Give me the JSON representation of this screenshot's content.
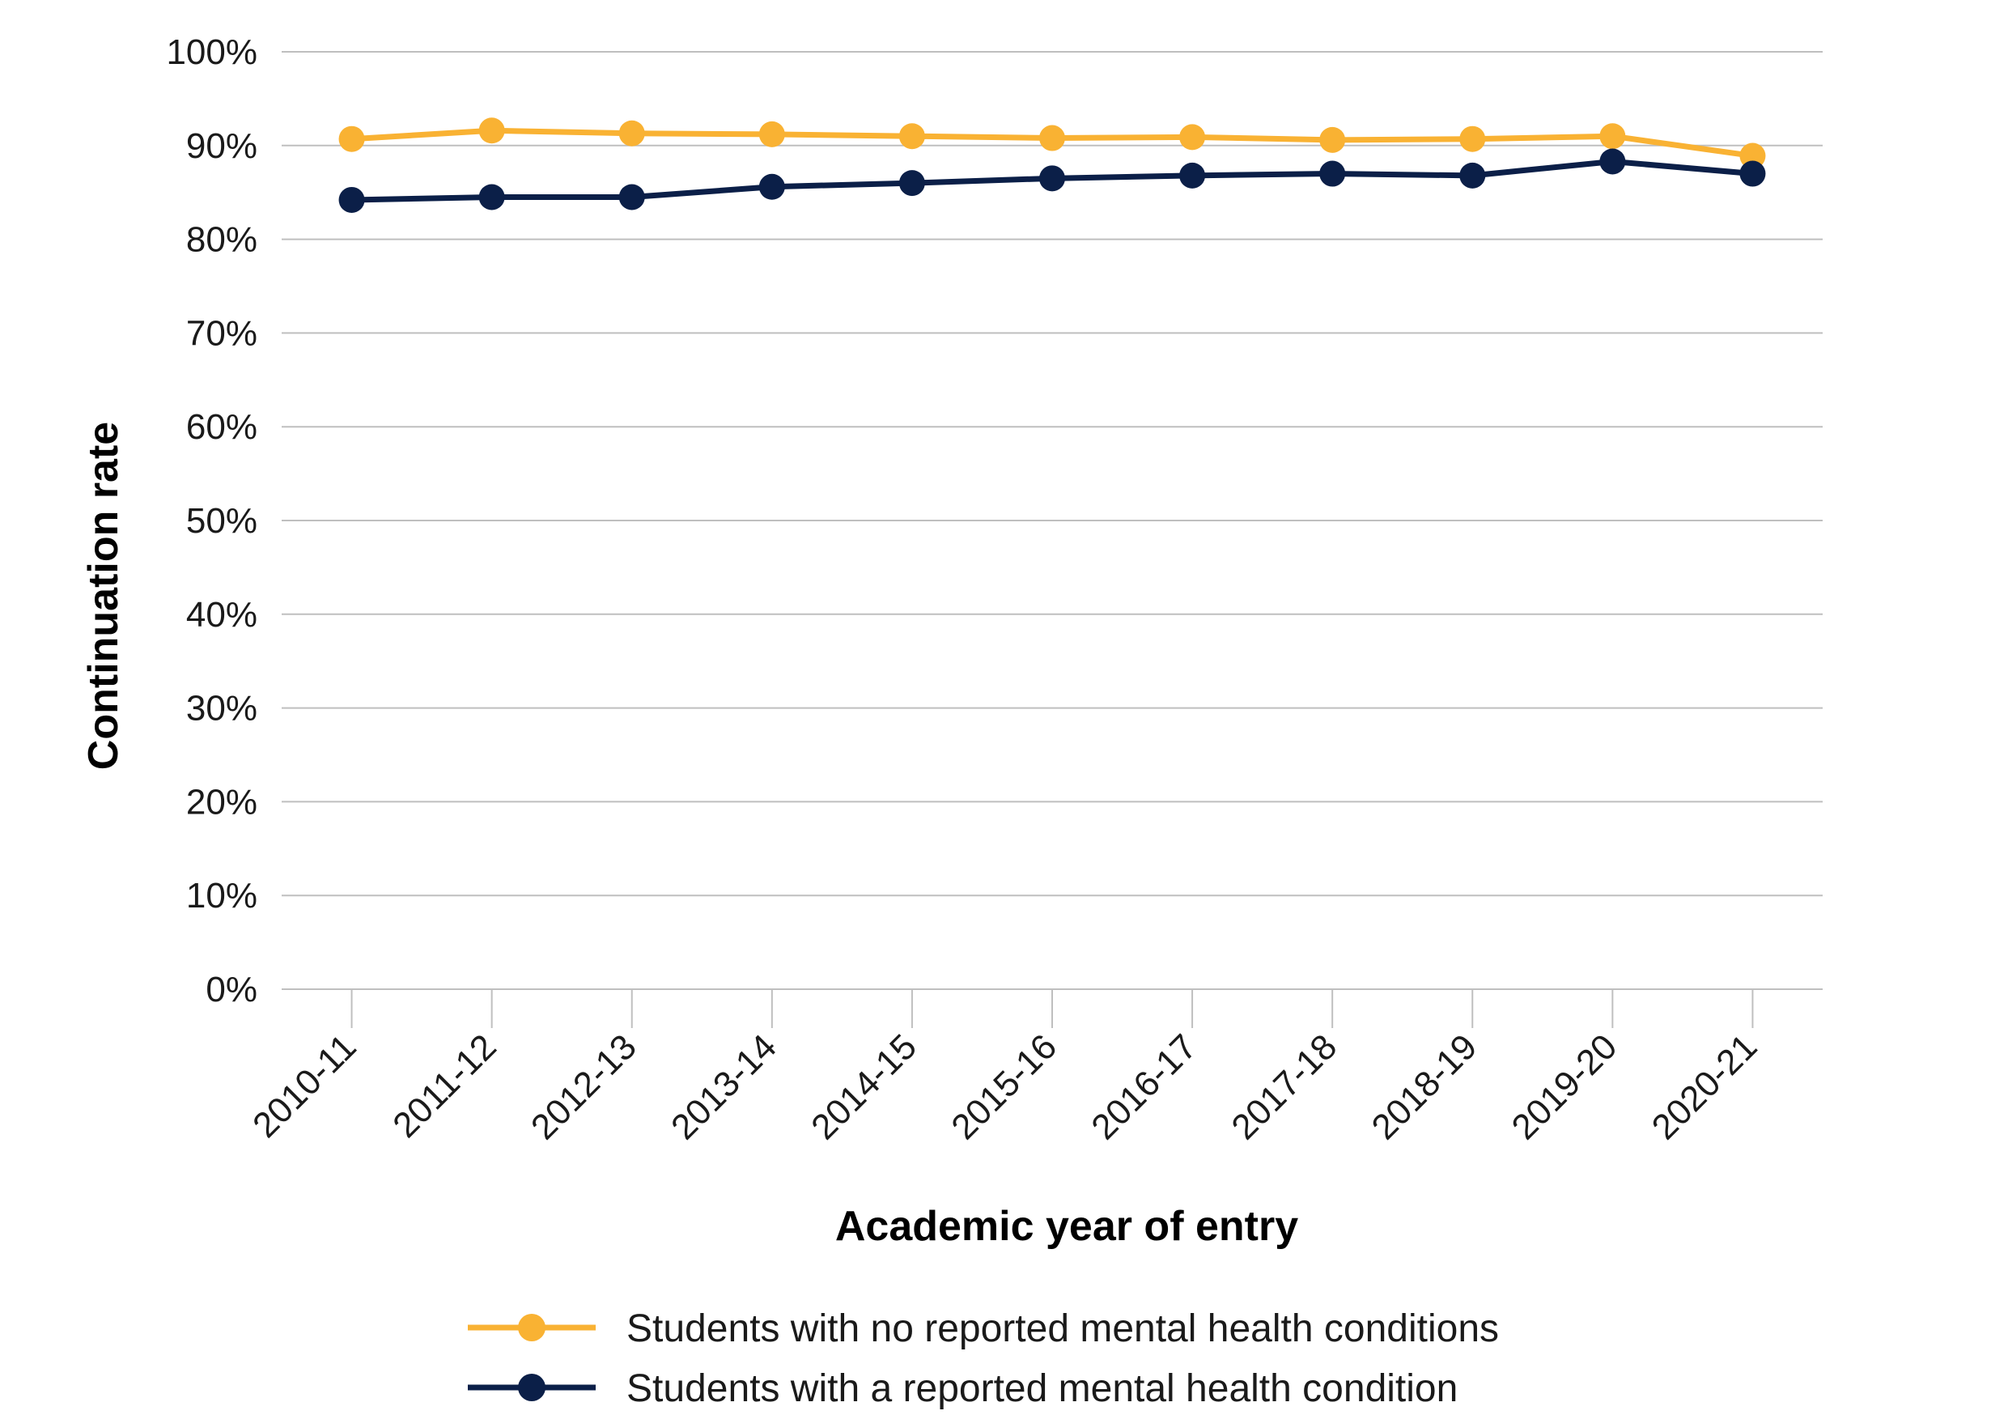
{
  "chart_data": {
    "type": "line",
    "title": "",
    "xlabel": "Academic year of entry",
    "ylabel": "Continuation rate",
    "categories": [
      "2010-11",
      "2011-12",
      "2012-13",
      "2013-14",
      "2014-15",
      "2015-16",
      "2016-17",
      "2017-18",
      "2018-19",
      "2019-20",
      "2020-21"
    ],
    "ylim": [
      0,
      100
    ],
    "yticks": [
      "0%",
      "10%",
      "20%",
      "30%",
      "40%",
      "50%",
      "60%",
      "70%",
      "80%",
      "90%",
      "100%"
    ],
    "grid": true,
    "legend_position": "bottom",
    "series": [
      {
        "name": "Students with no reported mental health conditions",
        "color": "#F9B233",
        "values": [
          90.7,
          91.6,
          91.3,
          91.2,
          91.0,
          90.8,
          90.9,
          90.6,
          90.7,
          91.0,
          88.9
        ]
      },
      {
        "name": "Students with a reported mental health condition",
        "color": "#0B1F48",
        "values": [
          84.2,
          84.5,
          84.5,
          85.6,
          86.0,
          86.5,
          86.8,
          87.0,
          86.8,
          88.3,
          87.0
        ]
      }
    ]
  }
}
